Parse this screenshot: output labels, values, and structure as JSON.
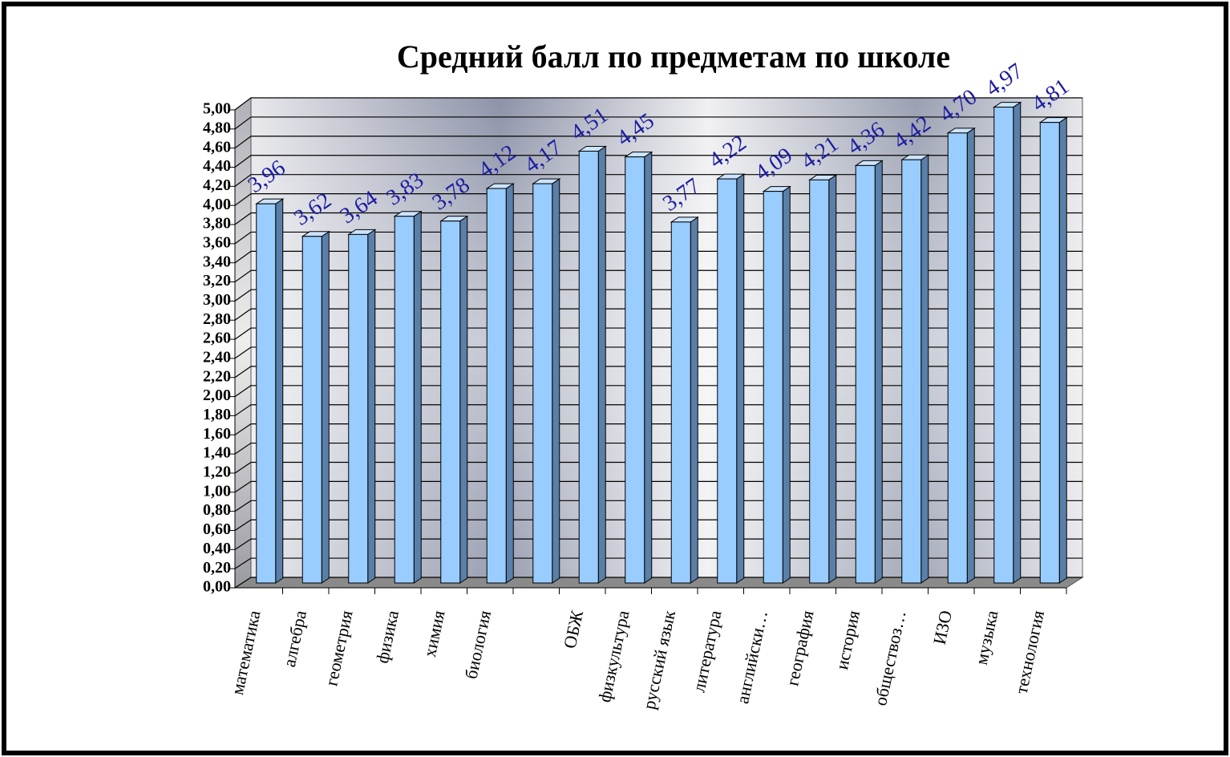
{
  "chart_data": {
    "type": "bar3d",
    "title": "Средний балл по предметам по школе",
    "categories": [
      "математика",
      "алгебра",
      "геометрия",
      "физика",
      "химия",
      "биология",
      null,
      "ОБЖ",
      "физкультура",
      "русский язык",
      "литература",
      "английски…",
      "география",
      "история",
      "обществоз…",
      "ИЗО",
      "музыка",
      "технология"
    ],
    "values": [
      3.96,
      3.62,
      3.64,
      3.83,
      3.78,
      4.12,
      4.17,
      4.51,
      4.45,
      3.77,
      4.22,
      4.09,
      4.21,
      4.36,
      4.42,
      4.7,
      4.97,
      4.81
    ],
    "value_labels": [
      "3,96",
      "3,62",
      "3,64",
      "3,83",
      "3,78",
      "4,12",
      "4,17",
      "4,51",
      "4,45",
      "3,77",
      "4,22",
      "4,09",
      "4,21",
      "4,36",
      "4,42",
      "4,70",
      "4,97",
      "4,81"
    ],
    "color": "#99ccff",
    "label_color": "#1c1ca0",
    "ylim": [
      0,
      5
    ],
    "yticks": [
      {
        "value": 0,
        "label": "0,00"
      },
      {
        "value": 0.2,
        "label": "0,20"
      },
      {
        "value": 0.4,
        "label": "0,40"
      },
      {
        "value": 0.6,
        "label": "0,60"
      },
      {
        "value": 0.8,
        "label": "0,80"
      },
      {
        "value": 1,
        "label": "1,00"
      },
      {
        "value": 1.2,
        "label": "1,20"
      },
      {
        "value": 1.4,
        "label": "1,40"
      },
      {
        "value": 1.6,
        "label": "1,60"
      },
      {
        "value": 1.8,
        "label": "1,80"
      },
      {
        "value": 2,
        "label": "2,00"
      },
      {
        "value": 2.2,
        "label": "2,20"
      },
      {
        "value": 2.4,
        "label": "2,40"
      },
      {
        "value": 2.6,
        "label": "2,60"
      },
      {
        "value": 2.8,
        "label": "2,80"
      },
      {
        "value": 3,
        "label": "3,00"
      },
      {
        "value": 3.2,
        "label": "3,20"
      },
      {
        "value": 3.4,
        "label": "3,40"
      },
      {
        "value": 3.6,
        "label": "3,60"
      },
      {
        "value": 3.8,
        "label": "3,80"
      },
      {
        "value": 4,
        "label": "4,00"
      },
      {
        "value": 4.2,
        "label": "4,20"
      },
      {
        "value": 4.4,
        "label": "4,40"
      },
      {
        "value": 4.6,
        "label": "4,60"
      },
      {
        "value": 4.8,
        "label": "4,80"
      },
      {
        "value": 5,
        "label": "5,00"
      }
    ],
    "grid": true
  }
}
